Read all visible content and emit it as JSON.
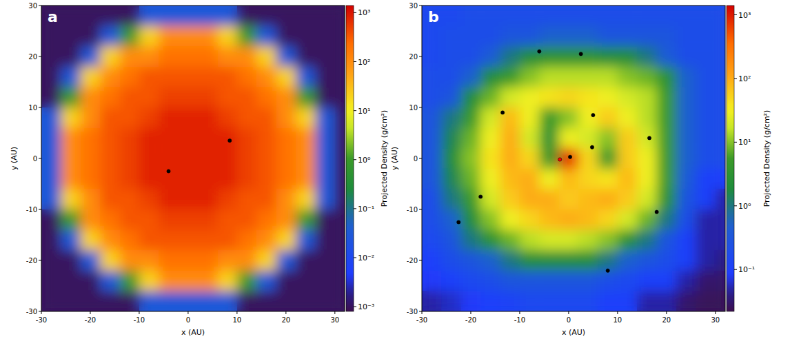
{
  "chart_data": [
    {
      "type": "heatmap",
      "title": "a",
      "xlabel": "x (AU)",
      "ylabel": "y (AU)",
      "xlim": [
        -30,
        32
      ],
      "ylim": [
        -30,
        30
      ],
      "xticks": [
        -30,
        -20,
        -10,
        0,
        10,
        20,
        30
      ],
      "yticks": [
        -30,
        -20,
        -10,
        0,
        10,
        20,
        30
      ],
      "x_edges": [
        -30,
        -26,
        -22,
        -18,
        -14,
        -10,
        -6,
        -2,
        2,
        6,
        10,
        14,
        18,
        22,
        26,
        30,
        32
      ],
      "y_edges": [
        30,
        26,
        22,
        18,
        14,
        10,
        6,
        2,
        -2,
        -6,
        -10,
        -14,
        -18,
        -22,
        -26,
        -30
      ],
      "cells": [
        [
          0.001,
          0.001,
          0.001,
          0.001,
          0.001,
          0.03,
          0.03,
          0.03,
          0.03,
          0.03,
          0.001,
          0.001,
          0.001,
          0.001,
          0.001,
          0.001
        ],
        [
          0.001,
          0.001,
          0.001,
          0.03,
          1,
          20,
          100,
          100,
          100,
          20,
          1,
          0.03,
          0.001,
          0.001,
          0.001,
          0.001
        ],
        [
          0.001,
          0.001,
          0.03,
          20,
          100,
          100,
          200,
          200,
          200,
          100,
          100,
          20,
          0.03,
          0.001,
          0.001,
          0.001
        ],
        [
          0.001,
          0.03,
          20,
          100,
          200,
          350,
          350,
          350,
          350,
          350,
          200,
          100,
          20,
          0.03,
          0.001,
          0.001
        ],
        [
          0.001,
          1,
          100,
          200,
          350,
          350,
          500,
          500,
          500,
          350,
          350,
          200,
          100,
          1,
          0.001,
          0.001
        ],
        [
          0.03,
          20,
          100,
          350,
          350,
          500,
          800,
          800,
          800,
          500,
          350,
          350,
          100,
          20,
          0.03,
          0.001
        ],
        [
          0.03,
          100,
          200,
          350,
          500,
          800,
          800,
          800,
          800,
          800,
          500,
          350,
          200,
          100,
          0.03,
          0.001
        ],
        [
          0.03,
          100,
          200,
          350,
          500,
          800,
          800,
          800,
          800,
          800,
          500,
          350,
          200,
          100,
          0.03,
          0.001
        ],
        [
          0.03,
          100,
          200,
          350,
          500,
          800,
          800,
          800,
          800,
          800,
          500,
          350,
          200,
          100,
          0.03,
          0.001
        ],
        [
          0.03,
          20,
          100,
          350,
          350,
          500,
          800,
          800,
          800,
          500,
          350,
          350,
          100,
          20,
          0.03,
          0.001
        ],
        [
          0.001,
          1,
          100,
          200,
          350,
          350,
          500,
          500,
          500,
          350,
          350,
          200,
          100,
          1,
          0.001,
          0.001
        ],
        [
          0.001,
          0.03,
          20,
          100,
          200,
          350,
          350,
          350,
          350,
          350,
          200,
          100,
          20,
          0.03,
          0.001,
          0.001
        ],
        [
          0.001,
          0.001,
          0.03,
          20,
          100,
          100,
          200,
          200,
          200,
          100,
          100,
          20,
          0.03,
          0.001,
          0.001,
          0.001
        ],
        [
          0.001,
          0.001,
          0.001,
          0.03,
          1,
          20,
          100,
          100,
          100,
          20,
          1,
          0.03,
          0.001,
          0.001,
          0.001,
          0.001
        ],
        [
          0.001,
          0.001,
          0.001,
          0.001,
          0.001,
          0.03,
          0.03,
          0.03,
          0.03,
          0.03,
          0.001,
          0.001,
          0.001,
          0.001,
          0.001,
          0.001
        ]
      ],
      "colorbar": {
        "title": "Projected Density (g/cm²)",
        "log": true,
        "range": [
          0.0008,
          1400
        ],
        "ticks": [
          {
            "value": 0.001,
            "label": "10⁻³"
          },
          {
            "value": 0.01,
            "label": "10⁻²"
          },
          {
            "value": 0.1,
            "label": "10⁻¹"
          },
          {
            "value": 1,
            "label": "10⁰"
          },
          {
            "value": 10,
            "label": "10¹"
          },
          {
            "value": 100,
            "label": "10²"
          },
          {
            "value": 1000,
            "label": "10³"
          }
        ]
      },
      "series": [
        {
          "type": "scatter",
          "marker": "circle",
          "color": "#000000",
          "x": [
            8.5,
            -4
          ],
          "values": [
            3.5,
            -2.5
          ]
        }
      ]
    },
    {
      "type": "heatmap",
      "title": "b",
      "xlabel": "x (AU)",
      "ylabel": "y (AU)",
      "xlim": [
        -30,
        32
      ],
      "ylim": [
        -30,
        30
      ],
      "xticks": [
        -30,
        -20,
        -10,
        0,
        10,
        20,
        30
      ],
      "yticks": [
        -30,
        -20,
        -10,
        0,
        10,
        20,
        30
      ],
      "x_edges": [
        -30,
        -26,
        -22,
        -18,
        -14,
        -10,
        -6,
        -2,
        2,
        6,
        10,
        14,
        18,
        22,
        26,
        30,
        32
      ],
      "y_edges": [
        30,
        26,
        22,
        18,
        14,
        10,
        6,
        2,
        -2,
        -6,
        -10,
        -14,
        -18,
        -22,
        -26,
        -30
      ],
      "cells": [
        [
          0.15,
          0.15,
          0.2,
          0.2,
          0.2,
          0.2,
          0.2,
          0.2,
          0.2,
          0.2,
          0.2,
          0.2,
          0.2,
          0.2,
          0.2,
          0.2
        ],
        [
          0.15,
          0.2,
          0.2,
          0.2,
          0.3,
          0.3,
          0.5,
          0.5,
          0.5,
          0.3,
          0.3,
          0.3,
          0.3,
          0.2,
          0.2,
          0.2
        ],
        [
          0.15,
          0.2,
          0.2,
          0.4,
          1,
          2,
          3,
          3,
          3,
          2,
          2,
          1,
          0.4,
          0.2,
          0.2,
          0.2
        ],
        [
          0.2,
          0.2,
          0.5,
          2,
          5,
          10,
          15,
          15,
          15,
          15,
          10,
          8,
          3,
          0.5,
          0.2,
          0.2
        ],
        [
          0.2,
          0.3,
          2,
          8,
          20,
          30,
          40,
          50,
          40,
          30,
          20,
          15,
          5,
          0.5,
          0.2,
          0.2
        ],
        [
          0.3,
          1,
          5,
          20,
          80,
          30,
          5,
          10,
          30,
          60,
          30,
          15,
          5,
          0.5,
          0.2,
          0.2
        ],
        [
          0.3,
          1.5,
          8,
          30,
          100,
          20,
          3,
          30,
          20,
          10,
          60,
          20,
          5,
          0.5,
          0.2,
          0.2
        ],
        [
          0.3,
          2,
          10,
          40,
          100,
          50,
          5,
          800,
          50,
          5,
          60,
          30,
          5,
          0.5,
          0.2,
          0.2
        ],
        [
          0.3,
          1.5,
          8,
          30,
          80,
          100,
          30,
          80,
          50,
          40,
          80,
          30,
          5,
          0.4,
          0.1,
          0.1
        ],
        [
          0.2,
          1,
          5,
          20,
          60,
          100,
          100,
          60,
          80,
          100,
          60,
          20,
          3,
          0.3,
          0.1,
          0.05
        ],
        [
          0.2,
          0.5,
          2,
          10,
          30,
          50,
          80,
          100,
          80,
          50,
          20,
          8,
          1,
          0.2,
          0.05,
          0.05
        ],
        [
          0.15,
          0.3,
          1,
          3,
          8,
          15,
          20,
          20,
          15,
          10,
          3,
          1,
          0.3,
          0.1,
          0.05,
          0.05
        ],
        [
          0.1,
          0.2,
          0.3,
          0.5,
          1,
          2,
          2,
          2,
          2,
          1,
          0.5,
          0.3,
          0.2,
          0.1,
          0.05,
          0.04
        ],
        [
          0.08,
          0.1,
          0.15,
          0.2,
          0.3,
          0.3,
          0.3,
          0.3,
          0.3,
          0.2,
          0.15,
          0.1,
          0.1,
          0.05,
          0.03,
          0.03
        ],
        [
          0.05,
          0.06,
          0.08,
          0.1,
          0.12,
          0.15,
          0.15,
          0.15,
          0.15,
          0.1,
          0.1,
          0.05,
          0.05,
          0.03,
          0.025,
          0.025
        ]
      ],
      "colorbar": {
        "title": "Projected Density (g/cm²)",
        "log": true,
        "range": [
          0.022,
          1400
        ],
        "ticks": [
          {
            "value": 0.1,
            "label": "10⁻¹"
          },
          {
            "value": 1,
            "label": "10⁰"
          },
          {
            "value": 10,
            "label": "10¹"
          },
          {
            "value": 100,
            "label": "10²"
          },
          {
            "value": 1000,
            "label": "10³"
          }
        ]
      },
      "series": [
        {
          "type": "scatter",
          "marker": "circle",
          "color": "#000000",
          "x": [
            -13.5,
            5,
            4.8,
            16.5,
            -6,
            2.5,
            -18,
            -22.5,
            8,
            18,
            0.3
          ],
          "values": [
            9,
            8.5,
            2.2,
            4,
            21,
            20.5,
            -7.5,
            -12.5,
            -22,
            -10.5,
            0.3
          ]
        },
        {
          "type": "scatter",
          "marker": "circle",
          "color": "#ff0000",
          "x": [
            -1.8
          ],
          "values": [
            -0.2
          ]
        }
      ]
    }
  ]
}
